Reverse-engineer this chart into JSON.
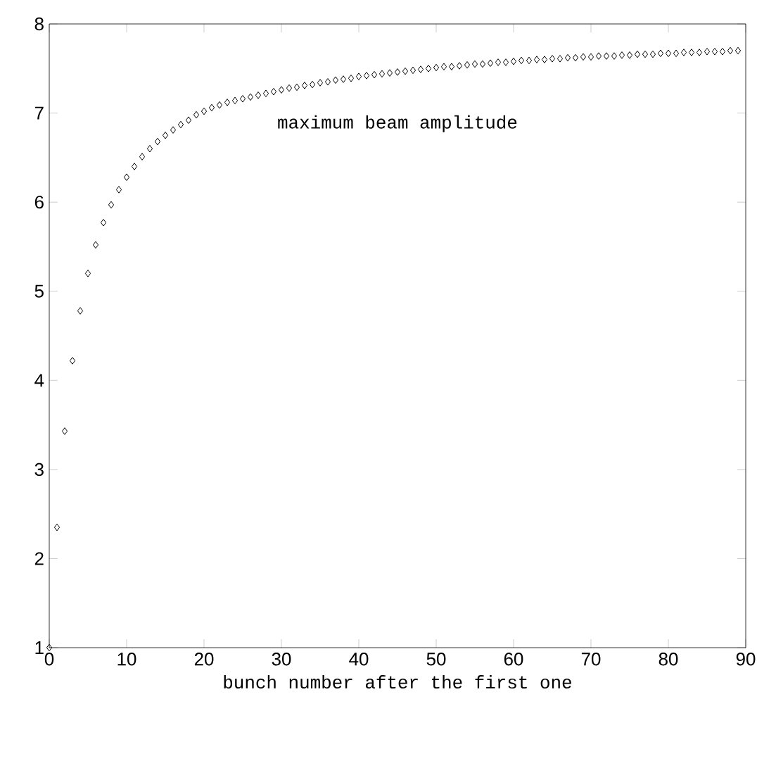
{
  "chart_data": {
    "type": "scatter",
    "xlabel": "bunch number after the first one",
    "annotations": [
      "maximum beam amplitude"
    ],
    "x": [
      0,
      1,
      2,
      3,
      4,
      5,
      6,
      7,
      8,
      9,
      10,
      11,
      12,
      13,
      14,
      15,
      16,
      17,
      18,
      19,
      20,
      21,
      22,
      23,
      24,
      25,
      26,
      27,
      28,
      29,
      30,
      31,
      32,
      33,
      34,
      35,
      36,
      37,
      38,
      39,
      40,
      41,
      42,
      43,
      44,
      45,
      46,
      47,
      48,
      49,
      50,
      51,
      52,
      53,
      54,
      55,
      56,
      57,
      58,
      59,
      60,
      61,
      62,
      63,
      64,
      65,
      66,
      67,
      68,
      69,
      70,
      71,
      72,
      73,
      74,
      75,
      76,
      77,
      78,
      79,
      80,
      81,
      82,
      83,
      84,
      85,
      86,
      87,
      88,
      89
    ],
    "series": [
      {
        "color": "#000000",
        "values": [
          1.0,
          2.35,
          3.43,
          4.22,
          4.78,
          5.2,
          5.52,
          5.77,
          5.97,
          6.14,
          6.28,
          6.4,
          6.51,
          6.6,
          6.68,
          6.75,
          6.81,
          6.87,
          6.92,
          6.98,
          7.02,
          7.06,
          7.09,
          7.12,
          7.14,
          7.16,
          7.18,
          7.2,
          7.22,
          7.24,
          7.26,
          7.28,
          7.29,
          7.31,
          7.32,
          7.34,
          7.35,
          7.37,
          7.38,
          7.39,
          7.41,
          7.42,
          7.43,
          7.44,
          7.45,
          7.46,
          7.47,
          7.48,
          7.49,
          7.5,
          7.51,
          7.52,
          7.52,
          7.53,
          7.54,
          7.55,
          7.55,
          7.56,
          7.57,
          7.57,
          7.58,
          7.59,
          7.59,
          7.6,
          7.6,
          7.61,
          7.61,
          7.62,
          7.62,
          7.63,
          7.63,
          7.64,
          7.64,
          7.64,
          7.65,
          7.65,
          7.66,
          7.66,
          7.66,
          7.67,
          7.67,
          7.67,
          7.68,
          7.68,
          7.68,
          7.69,
          7.69,
          7.69,
          7.7,
          7.7
        ]
      }
    ],
    "xlim": [
      0,
      90
    ],
    "ylim": [
      1,
      8
    ],
    "xticks": [
      0,
      10,
      20,
      30,
      40,
      50,
      60,
      70,
      80,
      90
    ],
    "yticks": [
      1,
      2,
      3,
      4,
      5,
      6,
      7,
      8
    ],
    "marker": "diamond"
  }
}
